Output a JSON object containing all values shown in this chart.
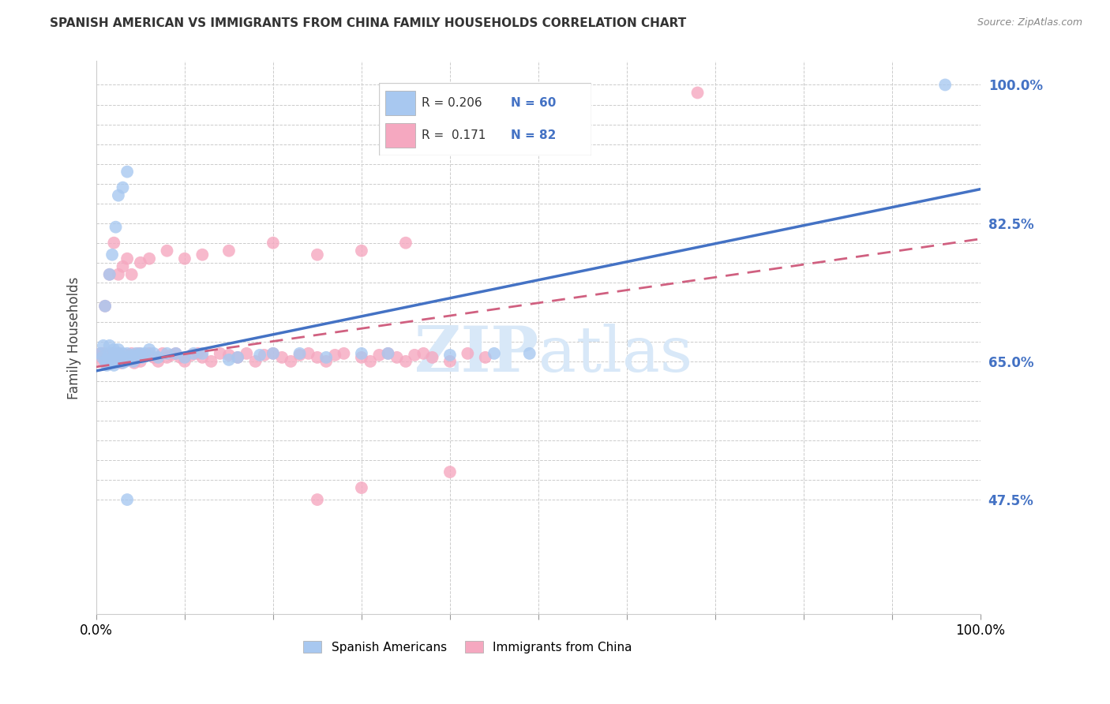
{
  "title": "SPANISH AMERICAN VS IMMIGRANTS FROM CHINA FAMILY HOUSEHOLDS CORRELATION CHART",
  "source": "Source: ZipAtlas.com",
  "ylabel": "Family Households",
  "xlabel": "",
  "xlim": [
    0.0,
    1.0
  ],
  "ylim": [
    0.33,
    1.03
  ],
  "blue_R": 0.206,
  "blue_N": 60,
  "pink_R": 0.171,
  "pink_N": 82,
  "blue_color": "#a8c8f0",
  "pink_color": "#f5a8c0",
  "blue_line_color": "#4472C4",
  "pink_line_color": "#D06080",
  "watermark_color": "#d8e8f8",
  "ytick_labeled": [
    0.475,
    0.65,
    0.825,
    1.0
  ],
  "ytick_labeled_str": [
    "47.5%",
    "65.0%",
    "82.5%",
    "100.0%"
  ],
  "ytick_minor": [
    0.475,
    0.5,
    0.525,
    0.55,
    0.575,
    0.6,
    0.625,
    0.65,
    0.675,
    0.7,
    0.725,
    0.75,
    0.775,
    0.8,
    0.825,
    0.85,
    0.875,
    0.9,
    0.925,
    0.95,
    0.975,
    1.0
  ],
  "blue_line": {
    "x0": 0.0,
    "y0": 0.638,
    "x1": 1.0,
    "y1": 0.868
  },
  "pink_line": {
    "x0": 0.0,
    "y0": 0.643,
    "x1": 1.0,
    "y1": 0.805
  },
  "blue_scatter_x": [
    0.005,
    0.007,
    0.008,
    0.01,
    0.012,
    0.013,
    0.015,
    0.015,
    0.016,
    0.018,
    0.02,
    0.02,
    0.021,
    0.022,
    0.023,
    0.025,
    0.025,
    0.026,
    0.028,
    0.03,
    0.03,
    0.032,
    0.033,
    0.035,
    0.038,
    0.04,
    0.042,
    0.045,
    0.048,
    0.05,
    0.052,
    0.055,
    0.06,
    0.065,
    0.07,
    0.08,
    0.09,
    0.1,
    0.11,
    0.12,
    0.15,
    0.16,
    0.185,
    0.2,
    0.23,
    0.26,
    0.3,
    0.33,
    0.4,
    0.45,
    0.49,
    0.01,
    0.015,
    0.018,
    0.022,
    0.025,
    0.03,
    0.035,
    0.96,
    0.035
  ],
  "blue_scatter_y": [
    0.66,
    0.655,
    0.67,
    0.65,
    0.645,
    0.655,
    0.67,
    0.66,
    0.648,
    0.653,
    0.665,
    0.645,
    0.66,
    0.655,
    0.65,
    0.665,
    0.66,
    0.652,
    0.655,
    0.66,
    0.648,
    0.655,
    0.65,
    0.66,
    0.655,
    0.658,
    0.65,
    0.66,
    0.658,
    0.66,
    0.655,
    0.66,
    0.665,
    0.66,
    0.655,
    0.66,
    0.66,
    0.655,
    0.66,
    0.66,
    0.652,
    0.655,
    0.658,
    0.66,
    0.66,
    0.655,
    0.66,
    0.66,
    0.658,
    0.66,
    0.66,
    0.72,
    0.76,
    0.785,
    0.82,
    0.86,
    0.87,
    0.89,
    1.0,
    0.475
  ],
  "pink_scatter_x": [
    0.005,
    0.007,
    0.008,
    0.01,
    0.012,
    0.015,
    0.018,
    0.02,
    0.022,
    0.025,
    0.028,
    0.03,
    0.033,
    0.035,
    0.038,
    0.04,
    0.043,
    0.045,
    0.048,
    0.05,
    0.055,
    0.06,
    0.065,
    0.07,
    0.075,
    0.08,
    0.085,
    0.09,
    0.095,
    0.1,
    0.108,
    0.115,
    0.12,
    0.13,
    0.14,
    0.15,
    0.16,
    0.17,
    0.18,
    0.19,
    0.2,
    0.21,
    0.22,
    0.23,
    0.24,
    0.25,
    0.26,
    0.27,
    0.28,
    0.3,
    0.31,
    0.32,
    0.33,
    0.34,
    0.35,
    0.36,
    0.37,
    0.38,
    0.4,
    0.42,
    0.44,
    0.01,
    0.015,
    0.02,
    0.025,
    0.03,
    0.035,
    0.04,
    0.05,
    0.06,
    0.08,
    0.1,
    0.12,
    0.15,
    0.2,
    0.25,
    0.3,
    0.35,
    0.68,
    0.25,
    0.3,
    0.4
  ],
  "pink_scatter_y": [
    0.66,
    0.65,
    0.66,
    0.655,
    0.648,
    0.655,
    0.66,
    0.65,
    0.655,
    0.66,
    0.648,
    0.655,
    0.65,
    0.658,
    0.655,
    0.66,
    0.648,
    0.655,
    0.66,
    0.65,
    0.658,
    0.66,
    0.655,
    0.65,
    0.66,
    0.655,
    0.658,
    0.66,
    0.655,
    0.65,
    0.658,
    0.66,
    0.655,
    0.65,
    0.66,
    0.658,
    0.655,
    0.66,
    0.65,
    0.658,
    0.66,
    0.655,
    0.65,
    0.658,
    0.66,
    0.655,
    0.65,
    0.658,
    0.66,
    0.655,
    0.65,
    0.658,
    0.66,
    0.655,
    0.65,
    0.658,
    0.66,
    0.655,
    0.65,
    0.66,
    0.655,
    0.72,
    0.76,
    0.8,
    0.76,
    0.77,
    0.78,
    0.76,
    0.775,
    0.78,
    0.79,
    0.78,
    0.785,
    0.79,
    0.8,
    0.785,
    0.79,
    0.8,
    0.99,
    0.475,
    0.49,
    0.51
  ]
}
